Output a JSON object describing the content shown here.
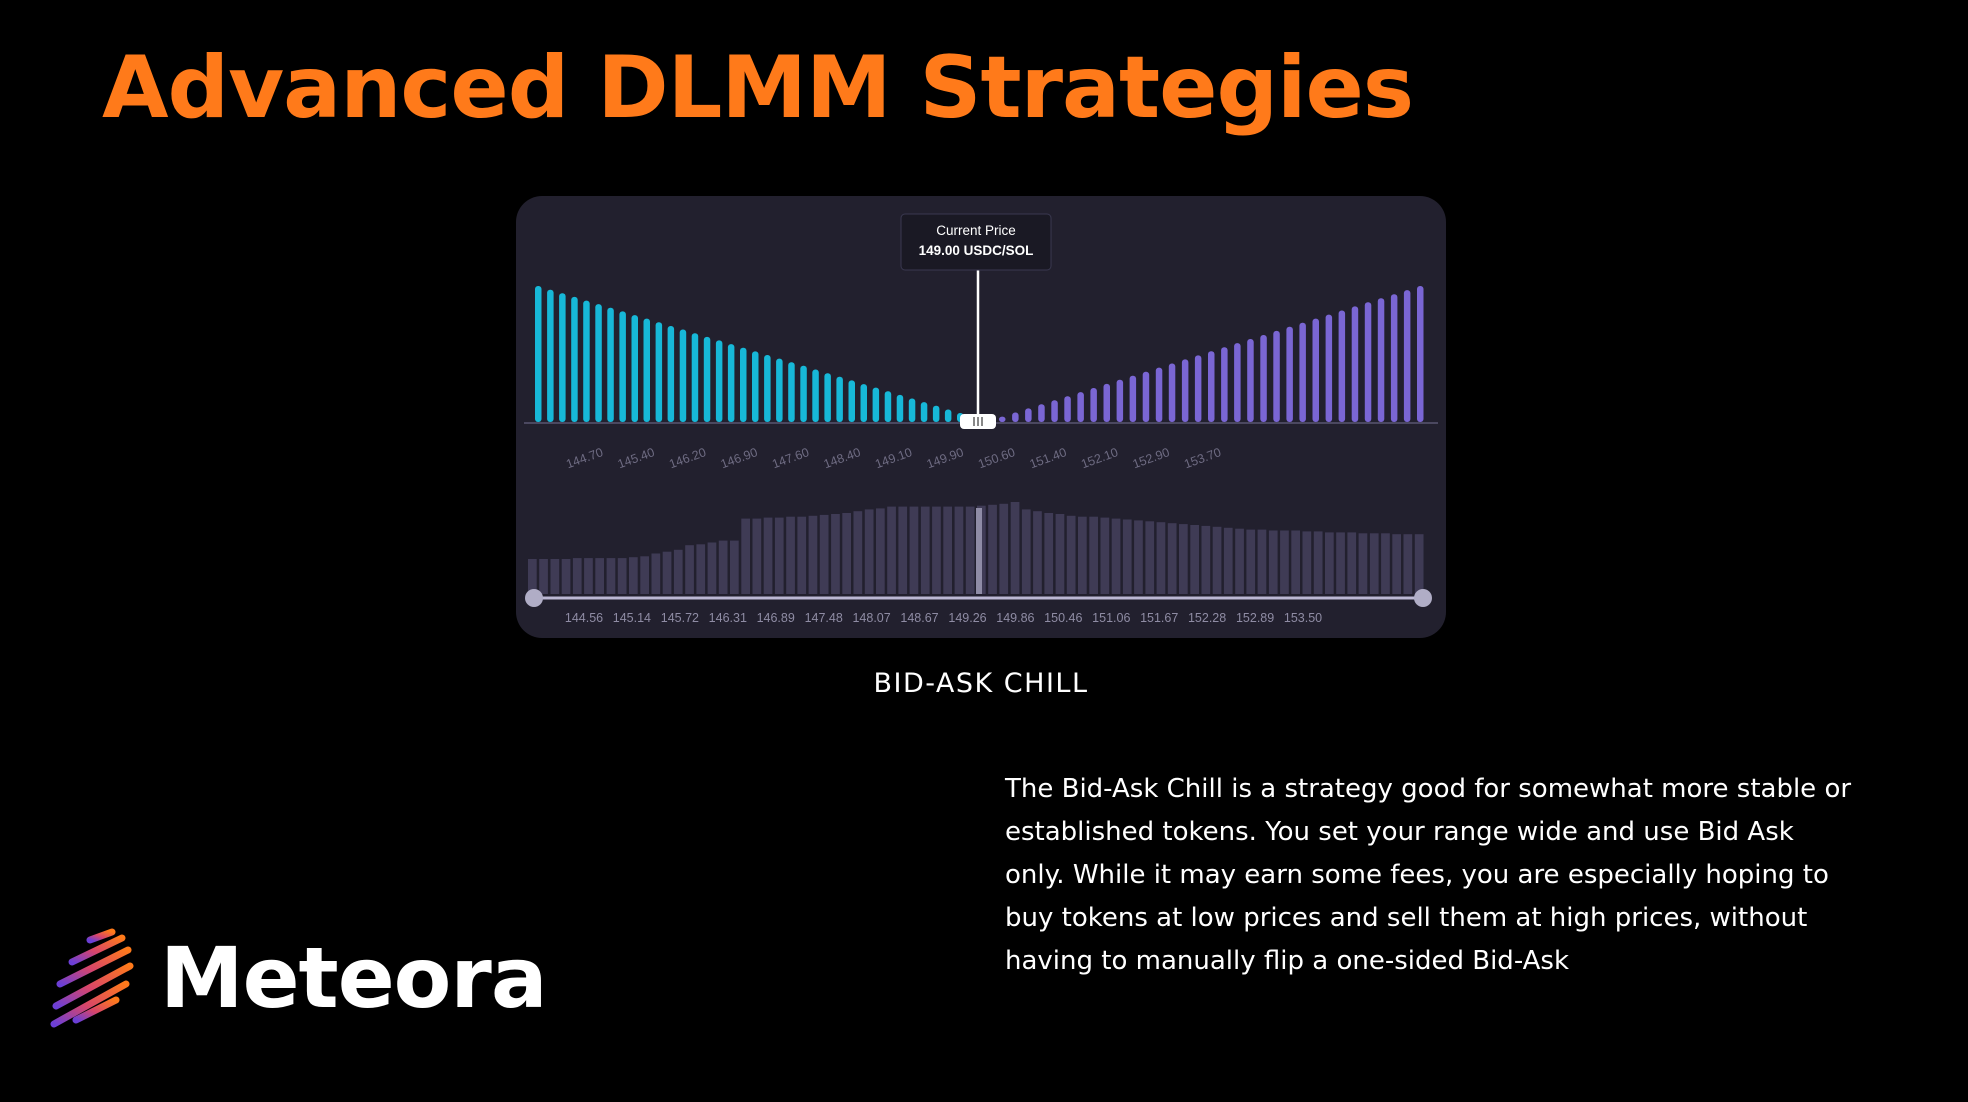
{
  "slide": {
    "title": "Advanced DLMM Strategies",
    "caption": "BID-ASK CHILL",
    "description": "The Bid-Ask Chill is a strategy good for somewhat more stable or established tokens. You set your range wide and use Bid Ask only. While it may earn some fees, you are especially hoping to buy tokens at low prices and sell them at high prices, without having to manually flip a one-sided Bid-Ask",
    "brand": "Meteora"
  },
  "colors": {
    "title": "#ff7a1a",
    "bid_bars": "#17b8d8",
    "ask_bars": "#7a66d4",
    "panel_bg": "#22202e",
    "depth_bars": "#3f3b55"
  },
  "icons": {
    "brand_logo": "meteora-logo-icon",
    "slider_handle": "range-handle-icon"
  },
  "chart_data": {
    "type": "bar",
    "current_price": {
      "label": "Current Price",
      "value_text": "149.00 USDC/SOL",
      "value": 149.0
    },
    "distribution": {
      "bid_series_relative_height": [
        1.0,
        0.973,
        0.947,
        0.92,
        0.893,
        0.867,
        0.84,
        0.813,
        0.786,
        0.76,
        0.733,
        0.706,
        0.68,
        0.653,
        0.626,
        0.6,
        0.573,
        0.546,
        0.519,
        0.493,
        0.466,
        0.439,
        0.413,
        0.386,
        0.359,
        0.333,
        0.306,
        0.279,
        0.253,
        0.226,
        0.199,
        0.173,
        0.146,
        0.119,
        0.092,
        0.066
      ],
      "ask_series_relative_height": [
        0.04,
        0.07,
        0.1,
        0.13,
        0.16,
        0.19,
        0.22,
        0.25,
        0.28,
        0.31,
        0.34,
        0.37,
        0.4,
        0.43,
        0.46,
        0.49,
        0.52,
        0.55,
        0.58,
        0.61,
        0.64,
        0.67,
        0.7,
        0.73,
        0.76,
        0.79,
        0.82,
        0.85,
        0.88,
        0.91,
        0.94,
        0.97,
        1.0
      ],
      "tick_labels": [
        "144.70",
        "145.40",
        "146.20",
        "146.90",
        "147.60",
        "148.40",
        "149.10",
        "149.90",
        "150.60",
        "151.40",
        "152.10",
        "152.90",
        "153.70"
      ]
    },
    "range_selector": {
      "depth_relative_height": [
        0.38,
        0.38,
        0.38,
        0.38,
        0.39,
        0.39,
        0.39,
        0.39,
        0.39,
        0.4,
        0.41,
        0.44,
        0.46,
        0.48,
        0.53,
        0.54,
        0.56,
        0.58,
        0.58,
        0.82,
        0.82,
        0.83,
        0.83,
        0.84,
        0.84,
        0.85,
        0.86,
        0.87,
        0.88,
        0.9,
        0.92,
        0.93,
        0.95,
        0.95,
        0.95,
        0.95,
        0.95,
        0.95,
        0.95,
        0.95,
        0.96,
        0.97,
        0.98,
        1.0,
        0.92,
        0.9,
        0.88,
        0.87,
        0.85,
        0.84,
        0.84,
        0.83,
        0.82,
        0.81,
        0.8,
        0.79,
        0.78,
        0.77,
        0.76,
        0.75,
        0.74,
        0.73,
        0.72,
        0.71,
        0.7,
        0.7,
        0.69,
        0.69,
        0.69,
        0.68,
        0.68,
        0.67,
        0.67,
        0.67,
        0.66,
        0.66,
        0.66,
        0.65,
        0.65,
        0.65
      ],
      "tick_labels": [
        "144.56",
        "145.14",
        "145.72",
        "146.31",
        "146.89",
        "147.48",
        "148.07",
        "148.67",
        "149.26",
        "149.86",
        "150.46",
        "151.06",
        "151.67",
        "152.28",
        "152.89",
        "153.50"
      ]
    }
  }
}
